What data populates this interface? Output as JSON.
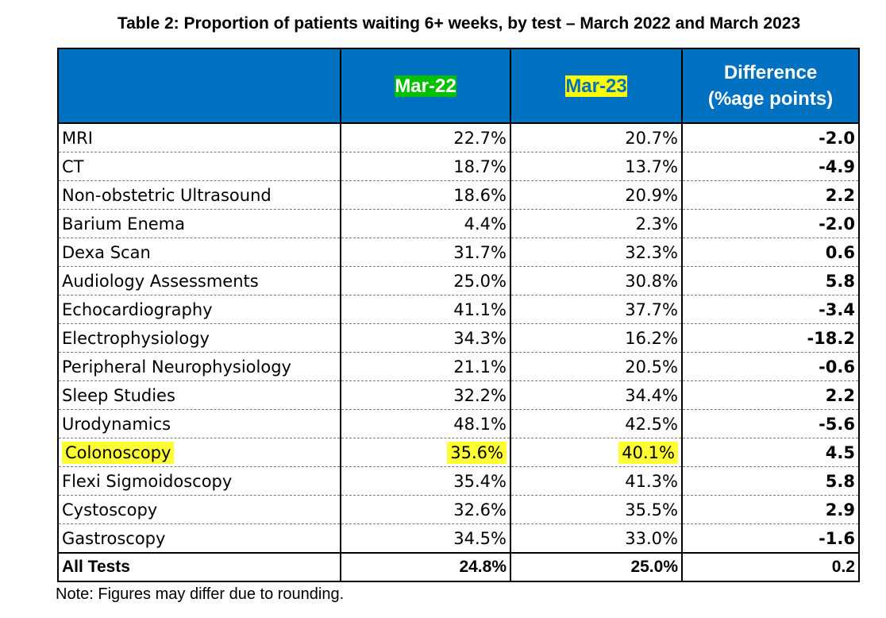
{
  "chart_data": {
    "type": "table",
    "title": "Table 2: Proportion of patients waiting 6+ weeks, by test – March 2022 and March 2023",
    "columns": [
      "",
      "Mar-22",
      "Mar-23",
      "Difference (%age points)"
    ],
    "header_line2": "(%age points)",
    "header_line1": "Difference",
    "rows": [
      {
        "test": "MRI",
        "mar22": "22.7%",
        "mar23": "20.7%",
        "diff": "-2.0"
      },
      {
        "test": "CT",
        "mar22": "18.7%",
        "mar23": "13.7%",
        "diff": "-4.9"
      },
      {
        "test": "Non-obstetric Ultrasound",
        "mar22": "18.6%",
        "mar23": "20.9%",
        "diff": "2.2"
      },
      {
        "test": "Barium Enema",
        "mar22": "4.4%",
        "mar23": "2.3%",
        "diff": "-2.0"
      },
      {
        "test": "Dexa Scan",
        "mar22": "31.7%",
        "mar23": "32.3%",
        "diff": "0.6"
      },
      {
        "test": "Audiology Assessments",
        "mar22": "25.0%",
        "mar23": "30.8%",
        "diff": "5.8"
      },
      {
        "test": "Echocardiography",
        "mar22": "41.1%",
        "mar23": "37.7%",
        "diff": "-3.4"
      },
      {
        "test": "Electrophysiology",
        "mar22": "34.3%",
        "mar23": "16.2%",
        "diff": "-18.2"
      },
      {
        "test": "Peripheral Neurophysiology",
        "mar22": "21.1%",
        "mar23": "20.5%",
        "diff": "-0.6"
      },
      {
        "test": "Sleep Studies",
        "mar22": "32.2%",
        "mar23": "34.4%",
        "diff": "2.2"
      },
      {
        "test": "Urodynamics",
        "mar22": "48.1%",
        "mar23": "42.5%",
        "diff": "-5.6"
      },
      {
        "test": "Colonoscopy",
        "mar22": "35.6%",
        "mar23": "40.1%",
        "diff": "4.5",
        "highlighted": true
      },
      {
        "test": "Flexi Sigmoidoscopy",
        "mar22": "35.4%",
        "mar23": "41.3%",
        "diff": "5.8"
      },
      {
        "test": "Cystoscopy",
        "mar22": "32.6%",
        "mar23": "35.5%",
        "diff": "2.9"
      },
      {
        "test": "Gastroscopy",
        "mar22": "34.5%",
        "mar23": "33.0%",
        "diff": "-1.6"
      }
    ],
    "total": {
      "test": "All Tests",
      "mar22": "24.8%",
      "mar23": "25.0%",
      "diff": "0.2"
    },
    "note": "Note: Figures may differ due to rounding."
  },
  "colors": {
    "header_bg": "#0070c0",
    "header_text": "#ffffff",
    "highlight_green": "#00c000",
    "highlight_yellow": "#ffff00"
  }
}
